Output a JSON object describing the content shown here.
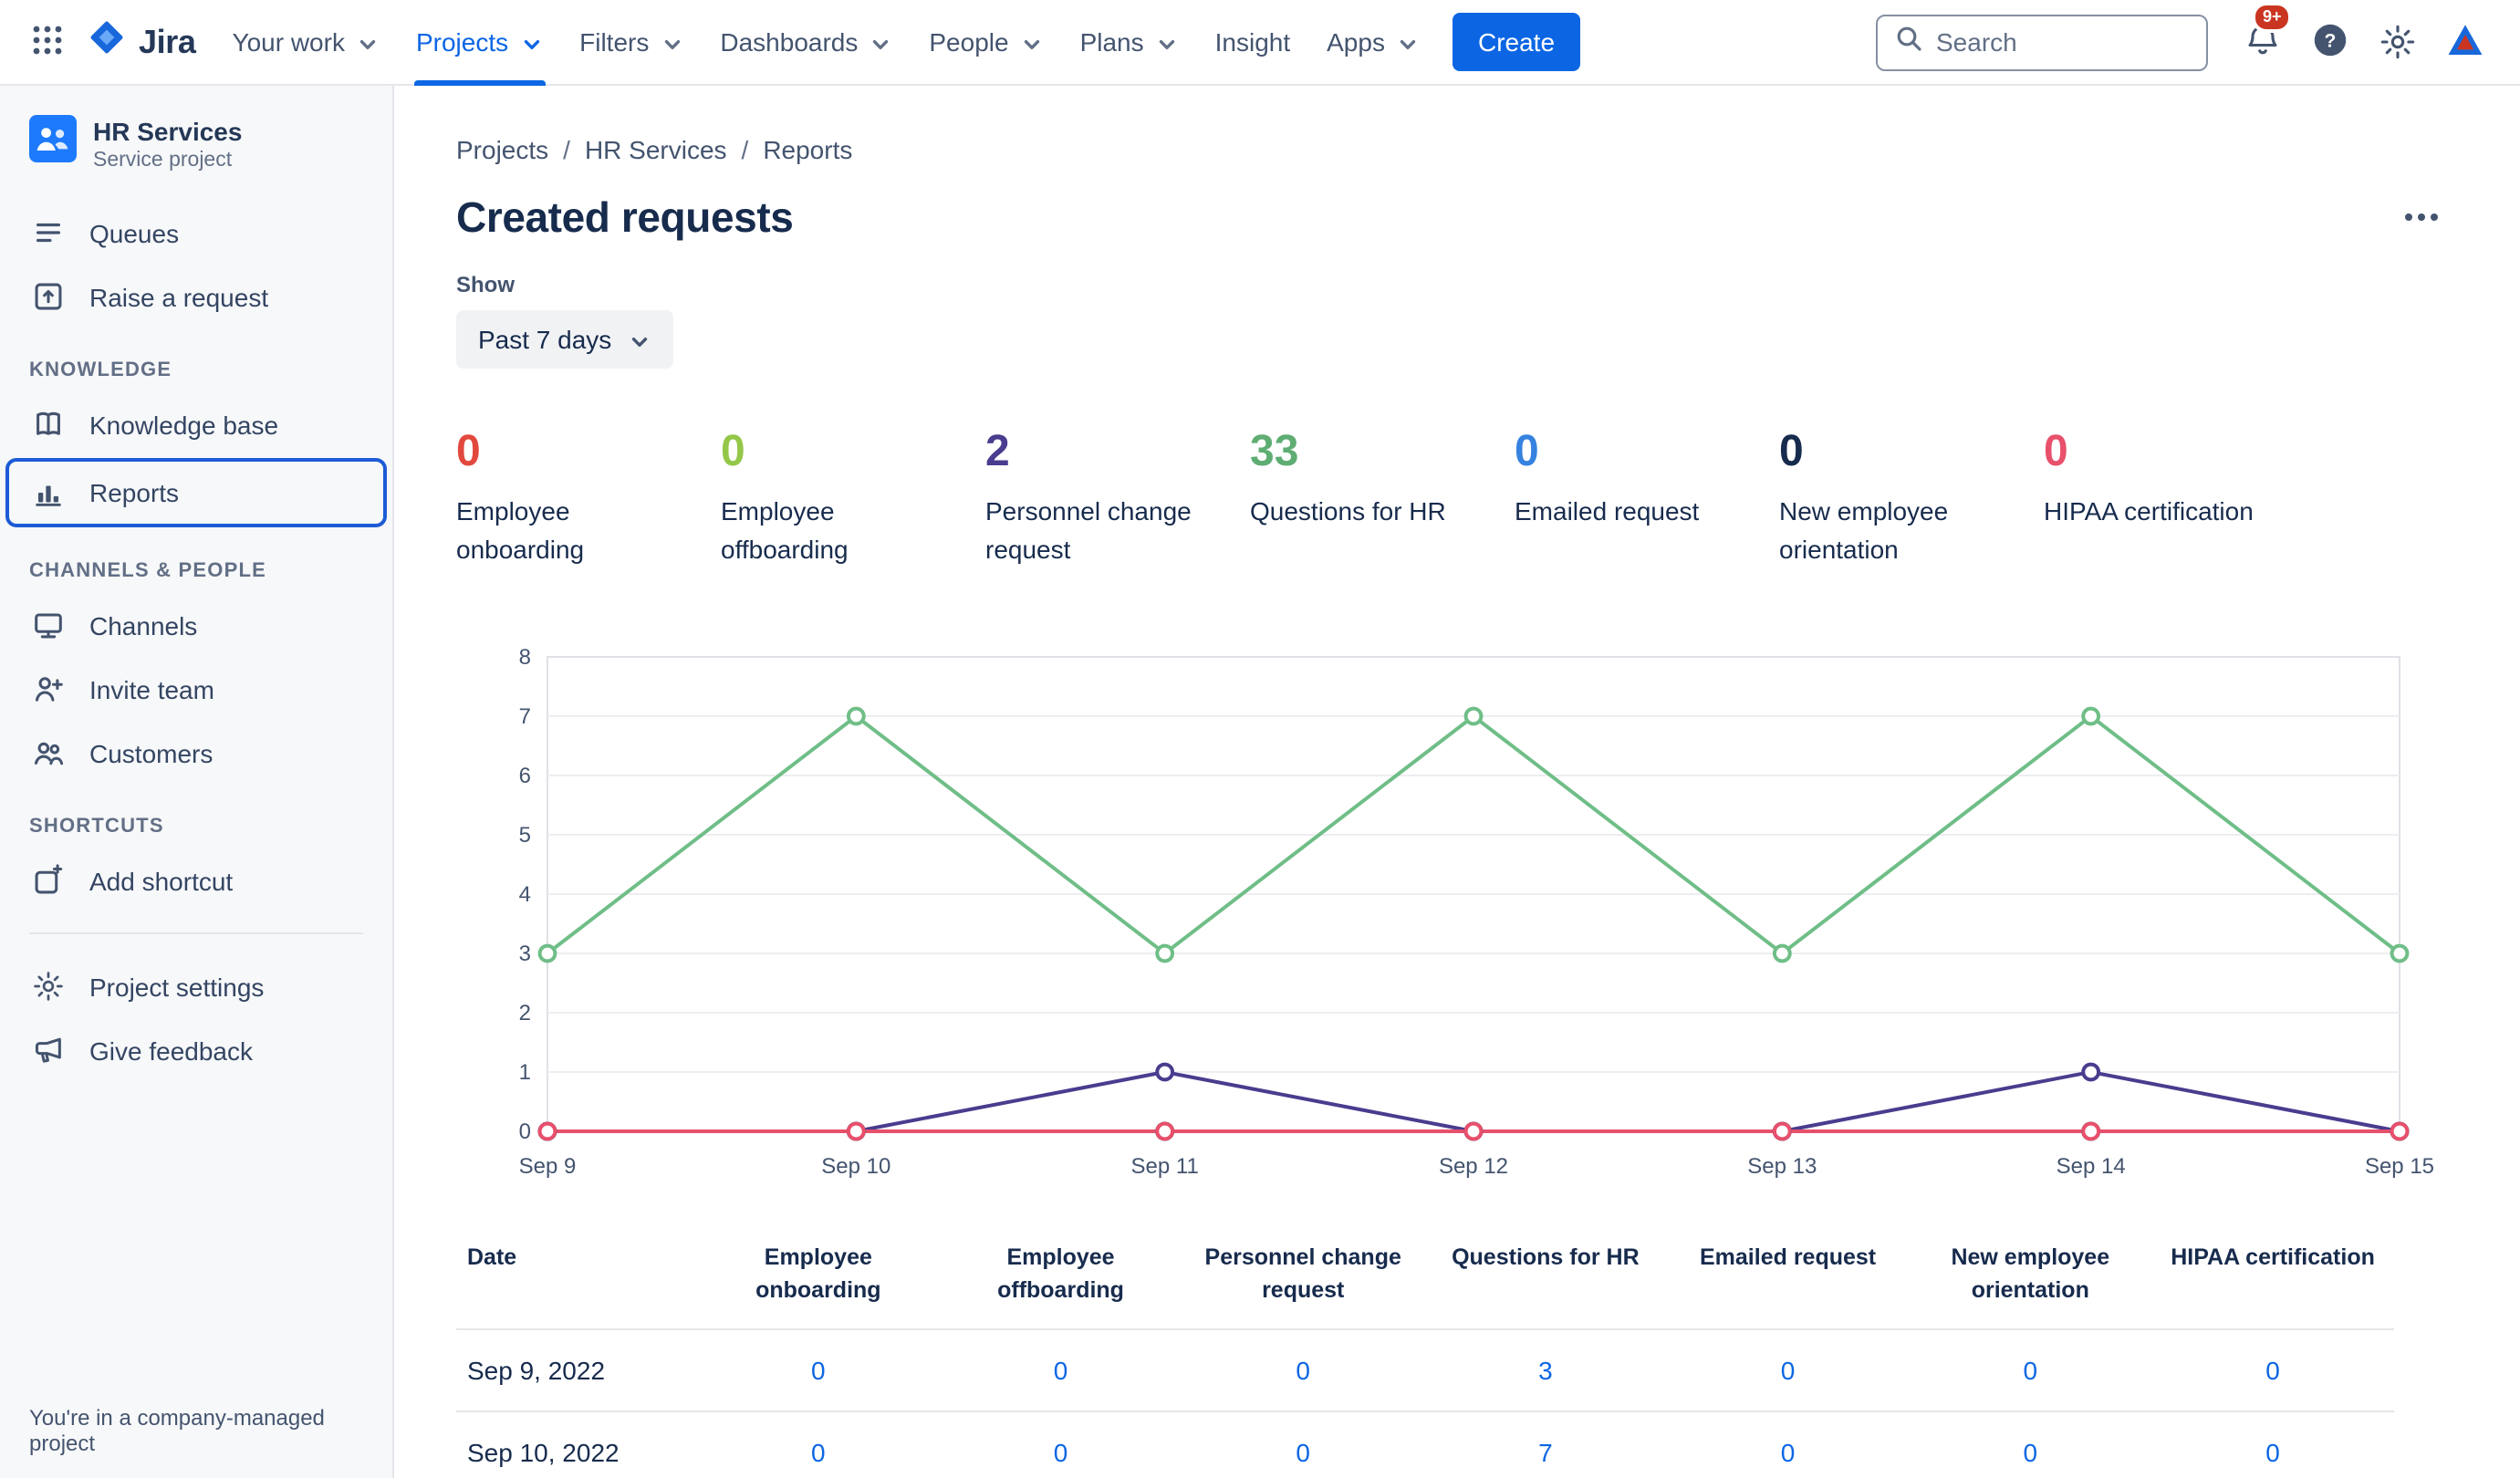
{
  "navbar": {
    "logo_text": "Jira",
    "items": [
      {
        "label": "Your work",
        "chevron": true,
        "active": false
      },
      {
        "label": "Projects",
        "chevron": true,
        "active": true
      },
      {
        "label": "Filters",
        "chevron": true,
        "active": false
      },
      {
        "label": "Dashboards",
        "chevron": true,
        "active": false
      },
      {
        "label": "People",
        "chevron": true,
        "active": false
      },
      {
        "label": "Plans",
        "chevron": true,
        "active": false
      },
      {
        "label": "Insight",
        "chevron": false,
        "active": false
      },
      {
        "label": "Apps",
        "chevron": true,
        "active": false
      }
    ],
    "create_label": "Create",
    "search_placeholder": "Search",
    "notifications_badge": "9+"
  },
  "sidebar": {
    "project_name": "HR Services",
    "project_type": "Service project",
    "top_items": [
      {
        "label": "Queues",
        "icon": "queues-icon"
      },
      {
        "label": "Raise a request",
        "icon": "raise-request-icon"
      }
    ],
    "sections": [
      {
        "title": "KNOWLEDGE",
        "items": [
          {
            "label": "Knowledge base",
            "icon": "book-icon",
            "selected": false
          },
          {
            "label": "Reports",
            "icon": "bar-chart-icon",
            "selected": true
          }
        ]
      },
      {
        "title": "CHANNELS & PEOPLE",
        "items": [
          {
            "label": "Channels",
            "icon": "monitor-icon",
            "selected": false
          },
          {
            "label": "Invite team",
            "icon": "person-add-icon",
            "selected": false
          },
          {
            "label": "Customers",
            "icon": "people-icon",
            "selected": false
          }
        ]
      },
      {
        "title": "SHORTCUTS",
        "items": [
          {
            "label": "Add shortcut",
            "icon": "add-shortcut-icon",
            "selected": false
          }
        ]
      }
    ],
    "bottom_items": [
      {
        "label": "Project settings",
        "icon": "gear-icon"
      },
      {
        "label": "Give feedback",
        "icon": "megaphone-icon"
      }
    ],
    "footer_note": "You're in a company-managed project"
  },
  "main": {
    "breadcrumb": [
      {
        "label": "Projects"
      },
      {
        "label": "HR Services"
      },
      {
        "label": "Reports"
      }
    ],
    "title": "Created requests",
    "show_label": "Show",
    "time_range": "Past 7 days",
    "stats": [
      {
        "value": "0",
        "label": "Employee onboarding",
        "color": "#E2483D"
      },
      {
        "value": "0",
        "label": "Employee offboarding",
        "color": "#94C748"
      },
      {
        "value": "2",
        "label": "Personnel change request",
        "color": "#4A3C8E"
      },
      {
        "value": "33",
        "label": "Questions for HR",
        "color": "#5FAD73"
      },
      {
        "value": "0",
        "label": "Emailed request",
        "color": "#3582E0"
      },
      {
        "value": "0",
        "label": "New employee orientation",
        "color": "#172B4D"
      },
      {
        "value": "0",
        "label": "HIPAA certification",
        "color": "#E8506B"
      }
    ]
  },
  "chart_data": {
    "type": "line",
    "title": "Created requests - past 7 days",
    "x_labels": [
      "Sep 9",
      "Sep 10",
      "Sep 11",
      "Sep 12",
      "Sep 13",
      "Sep 14",
      "Sep 15"
    ],
    "ylim": [
      0,
      8
    ],
    "ytick_step": 1,
    "grid": true,
    "legend_position": "none",
    "series": [
      {
        "name": "Employee onboarding",
        "color": "#E2483D",
        "values": [
          0,
          0,
          0,
          0,
          0,
          0,
          0
        ]
      },
      {
        "name": "Employee offboarding",
        "color": "#94C748",
        "values": [
          0,
          0,
          0,
          0,
          0,
          0,
          0
        ]
      },
      {
        "name": "Emailed request",
        "color": "#3582E0",
        "values": [
          0,
          0,
          0,
          0,
          0,
          0,
          0
        ]
      },
      {
        "name": "New employee orientation",
        "color": "#172B4D",
        "values": [
          0,
          0,
          0,
          0,
          0,
          0,
          0
        ]
      },
      {
        "name": "Questions for HR",
        "color": "#6FBE87",
        "values": [
          3,
          7,
          3,
          7,
          3,
          7,
          3
        ]
      },
      {
        "name": "Personnel change request",
        "color": "#4A3C8E",
        "values": [
          0,
          0,
          1,
          0,
          0,
          1,
          0
        ]
      },
      {
        "name": "HIPAA certification",
        "color": "#E8506B",
        "values": [
          0,
          0,
          0,
          0,
          0,
          0,
          0
        ]
      }
    ]
  },
  "table": {
    "headers": [
      "Date",
      "Employee onboarding",
      "Employee offboarding",
      "Personnel change request",
      "Questions for HR",
      "Emailed request",
      "New employee orientation",
      "HIPAA certification"
    ],
    "rows": [
      {
        "date": "Sep 9, 2022",
        "values": [
          "0",
          "0",
          "0",
          "3",
          "0",
          "0",
          "0"
        ]
      },
      {
        "date": "Sep 10, 2022",
        "values": [
          "0",
          "0",
          "0",
          "7",
          "0",
          "0",
          "0"
        ]
      }
    ]
  }
}
